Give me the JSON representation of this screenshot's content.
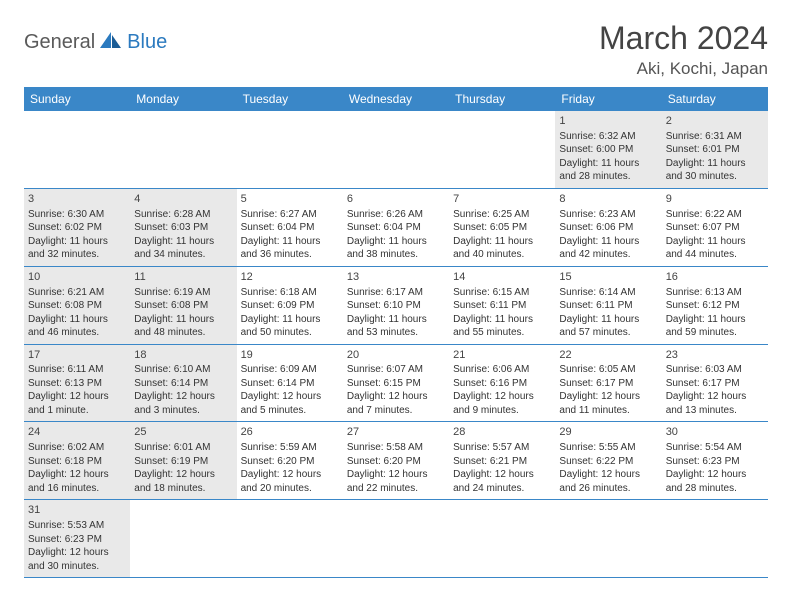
{
  "logo": {
    "general": "General",
    "blue": "Blue"
  },
  "title": "March 2024",
  "location": "Aki, Kochi, Japan",
  "colors": {
    "header_bg": "#3a87c8",
    "header_text": "#ffffff",
    "shade": "#e9e9e9",
    "row_border": "#3a87c8",
    "text": "#333333",
    "title_text": "#444444",
    "logo_gray": "#5a5a5a",
    "logo_blue": "#2b7abf"
  },
  "day_headers": [
    "Sunday",
    "Monday",
    "Tuesday",
    "Wednesday",
    "Thursday",
    "Friday",
    "Saturday"
  ],
  "weeks": [
    [
      {
        "num": "",
        "shaded": false
      },
      {
        "num": "",
        "shaded": false
      },
      {
        "num": "",
        "shaded": false
      },
      {
        "num": "",
        "shaded": false
      },
      {
        "num": "",
        "shaded": false
      },
      {
        "num": "1",
        "shaded": true,
        "sunrise": "Sunrise: 6:32 AM",
        "sunset": "Sunset: 6:00 PM",
        "daylight1": "Daylight: 11 hours",
        "daylight2": "and 28 minutes."
      },
      {
        "num": "2",
        "shaded": true,
        "sunrise": "Sunrise: 6:31 AM",
        "sunset": "Sunset: 6:01 PM",
        "daylight1": "Daylight: 11 hours",
        "daylight2": "and 30 minutes."
      }
    ],
    [
      {
        "num": "3",
        "shaded": true,
        "sunrise": "Sunrise: 6:30 AM",
        "sunset": "Sunset: 6:02 PM",
        "daylight1": "Daylight: 11 hours",
        "daylight2": "and 32 minutes."
      },
      {
        "num": "4",
        "shaded": true,
        "sunrise": "Sunrise: 6:28 AM",
        "sunset": "Sunset: 6:03 PM",
        "daylight1": "Daylight: 11 hours",
        "daylight2": "and 34 minutes."
      },
      {
        "num": "5",
        "shaded": false,
        "sunrise": "Sunrise: 6:27 AM",
        "sunset": "Sunset: 6:04 PM",
        "daylight1": "Daylight: 11 hours",
        "daylight2": "and 36 minutes."
      },
      {
        "num": "6",
        "shaded": false,
        "sunrise": "Sunrise: 6:26 AM",
        "sunset": "Sunset: 6:04 PM",
        "daylight1": "Daylight: 11 hours",
        "daylight2": "and 38 minutes."
      },
      {
        "num": "7",
        "shaded": false,
        "sunrise": "Sunrise: 6:25 AM",
        "sunset": "Sunset: 6:05 PM",
        "daylight1": "Daylight: 11 hours",
        "daylight2": "and 40 minutes."
      },
      {
        "num": "8",
        "shaded": false,
        "sunrise": "Sunrise: 6:23 AM",
        "sunset": "Sunset: 6:06 PM",
        "daylight1": "Daylight: 11 hours",
        "daylight2": "and 42 minutes."
      },
      {
        "num": "9",
        "shaded": false,
        "sunrise": "Sunrise: 6:22 AM",
        "sunset": "Sunset: 6:07 PM",
        "daylight1": "Daylight: 11 hours",
        "daylight2": "and 44 minutes."
      }
    ],
    [
      {
        "num": "10",
        "shaded": true,
        "sunrise": "Sunrise: 6:21 AM",
        "sunset": "Sunset: 6:08 PM",
        "daylight1": "Daylight: 11 hours",
        "daylight2": "and 46 minutes."
      },
      {
        "num": "11",
        "shaded": true,
        "sunrise": "Sunrise: 6:19 AM",
        "sunset": "Sunset: 6:08 PM",
        "daylight1": "Daylight: 11 hours",
        "daylight2": "and 48 minutes."
      },
      {
        "num": "12",
        "shaded": false,
        "sunrise": "Sunrise: 6:18 AM",
        "sunset": "Sunset: 6:09 PM",
        "daylight1": "Daylight: 11 hours",
        "daylight2": "and 50 minutes."
      },
      {
        "num": "13",
        "shaded": false,
        "sunrise": "Sunrise: 6:17 AM",
        "sunset": "Sunset: 6:10 PM",
        "daylight1": "Daylight: 11 hours",
        "daylight2": "and 53 minutes."
      },
      {
        "num": "14",
        "shaded": false,
        "sunrise": "Sunrise: 6:15 AM",
        "sunset": "Sunset: 6:11 PM",
        "daylight1": "Daylight: 11 hours",
        "daylight2": "and 55 minutes."
      },
      {
        "num": "15",
        "shaded": false,
        "sunrise": "Sunrise: 6:14 AM",
        "sunset": "Sunset: 6:11 PM",
        "daylight1": "Daylight: 11 hours",
        "daylight2": "and 57 minutes."
      },
      {
        "num": "16",
        "shaded": false,
        "sunrise": "Sunrise: 6:13 AM",
        "sunset": "Sunset: 6:12 PM",
        "daylight1": "Daylight: 11 hours",
        "daylight2": "and 59 minutes."
      }
    ],
    [
      {
        "num": "17",
        "shaded": true,
        "sunrise": "Sunrise: 6:11 AM",
        "sunset": "Sunset: 6:13 PM",
        "daylight1": "Daylight: 12 hours",
        "daylight2": "and 1 minute."
      },
      {
        "num": "18",
        "shaded": true,
        "sunrise": "Sunrise: 6:10 AM",
        "sunset": "Sunset: 6:14 PM",
        "daylight1": "Daylight: 12 hours",
        "daylight2": "and 3 minutes."
      },
      {
        "num": "19",
        "shaded": false,
        "sunrise": "Sunrise: 6:09 AM",
        "sunset": "Sunset: 6:14 PM",
        "daylight1": "Daylight: 12 hours",
        "daylight2": "and 5 minutes."
      },
      {
        "num": "20",
        "shaded": false,
        "sunrise": "Sunrise: 6:07 AM",
        "sunset": "Sunset: 6:15 PM",
        "daylight1": "Daylight: 12 hours",
        "daylight2": "and 7 minutes."
      },
      {
        "num": "21",
        "shaded": false,
        "sunrise": "Sunrise: 6:06 AM",
        "sunset": "Sunset: 6:16 PM",
        "daylight1": "Daylight: 12 hours",
        "daylight2": "and 9 minutes."
      },
      {
        "num": "22",
        "shaded": false,
        "sunrise": "Sunrise: 6:05 AM",
        "sunset": "Sunset: 6:17 PM",
        "daylight1": "Daylight: 12 hours",
        "daylight2": "and 11 minutes."
      },
      {
        "num": "23",
        "shaded": false,
        "sunrise": "Sunrise: 6:03 AM",
        "sunset": "Sunset: 6:17 PM",
        "daylight1": "Daylight: 12 hours",
        "daylight2": "and 13 minutes."
      }
    ],
    [
      {
        "num": "24",
        "shaded": true,
        "sunrise": "Sunrise: 6:02 AM",
        "sunset": "Sunset: 6:18 PM",
        "daylight1": "Daylight: 12 hours",
        "daylight2": "and 16 minutes."
      },
      {
        "num": "25",
        "shaded": true,
        "sunrise": "Sunrise: 6:01 AM",
        "sunset": "Sunset: 6:19 PM",
        "daylight1": "Daylight: 12 hours",
        "daylight2": "and 18 minutes."
      },
      {
        "num": "26",
        "shaded": false,
        "sunrise": "Sunrise: 5:59 AM",
        "sunset": "Sunset: 6:20 PM",
        "daylight1": "Daylight: 12 hours",
        "daylight2": "and 20 minutes."
      },
      {
        "num": "27",
        "shaded": false,
        "sunrise": "Sunrise: 5:58 AM",
        "sunset": "Sunset: 6:20 PM",
        "daylight1": "Daylight: 12 hours",
        "daylight2": "and 22 minutes."
      },
      {
        "num": "28",
        "shaded": false,
        "sunrise": "Sunrise: 5:57 AM",
        "sunset": "Sunset: 6:21 PM",
        "daylight1": "Daylight: 12 hours",
        "daylight2": "and 24 minutes."
      },
      {
        "num": "29",
        "shaded": false,
        "sunrise": "Sunrise: 5:55 AM",
        "sunset": "Sunset: 6:22 PM",
        "daylight1": "Daylight: 12 hours",
        "daylight2": "and 26 minutes."
      },
      {
        "num": "30",
        "shaded": false,
        "sunrise": "Sunrise: 5:54 AM",
        "sunset": "Sunset: 6:23 PM",
        "daylight1": "Daylight: 12 hours",
        "daylight2": "and 28 minutes."
      }
    ],
    [
      {
        "num": "31",
        "shaded": true,
        "sunrise": "Sunrise: 5:53 AM",
        "sunset": "Sunset: 6:23 PM",
        "daylight1": "Daylight: 12 hours",
        "daylight2": "and 30 minutes."
      },
      {
        "num": "",
        "shaded": false
      },
      {
        "num": "",
        "shaded": false
      },
      {
        "num": "",
        "shaded": false
      },
      {
        "num": "",
        "shaded": false
      },
      {
        "num": "",
        "shaded": false
      },
      {
        "num": "",
        "shaded": false
      }
    ]
  ]
}
